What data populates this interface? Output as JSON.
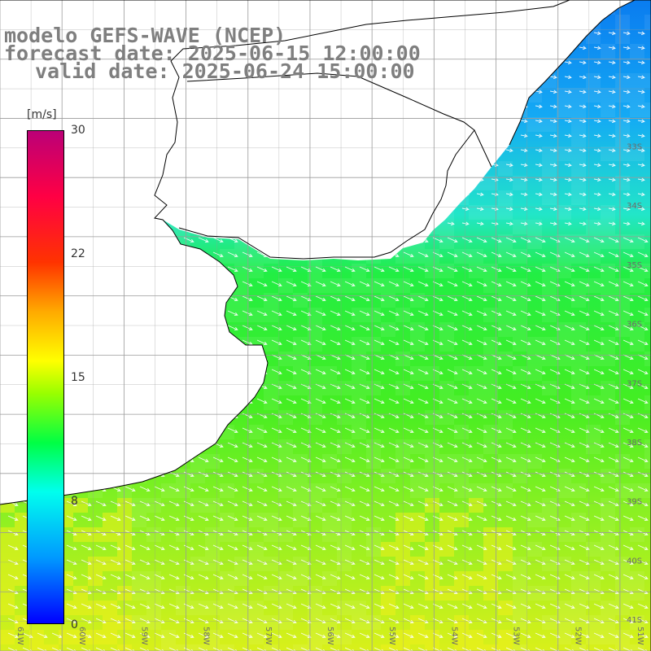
{
  "header": {
    "line1": "modelo GEFS-WAVE (NCEP)",
    "line2": "forecast date: 2025-06-15 12:00:00",
    "line3": "valid date: 2025-06-24 15:00:00"
  },
  "colorbar": {
    "unit": "[m/s]",
    "tick_labels": [
      "30",
      "22",
      "15",
      "8",
      "0"
    ],
    "range": [
      0,
      30
    ],
    "gradient_stops": [
      {
        "value": 0,
        "color": "#0000ff"
      },
      {
        "value": 4,
        "color": "#0099ff"
      },
      {
        "value": 8,
        "color": "#00ffee"
      },
      {
        "value": 11,
        "color": "#00ff44"
      },
      {
        "value": 14,
        "color": "#99ff00"
      },
      {
        "value": 16,
        "color": "#ffff00"
      },
      {
        "value": 19,
        "color": "#ffaa00"
      },
      {
        "value": 22,
        "color": "#ff3300"
      },
      {
        "value": 26,
        "color": "#ff0044"
      },
      {
        "value": 30,
        "color": "#bb0077"
      }
    ]
  },
  "map": {
    "lon_labels": [
      "61W",
      "60W",
      "59W",
      "58W",
      "57W",
      "56W",
      "55W",
      "54W",
      "53W",
      "52W",
      "51W"
    ],
    "lat_labels": [
      "33S",
      "34S",
      "35S",
      "36S",
      "37S",
      "38S",
      "39S",
      "40S",
      "41S"
    ],
    "lon_range": [
      -61,
      -50.5
    ],
    "lat_range": [
      -41.3,
      -30.3
    ],
    "ocean_color": "#44ee33",
    "land_color": "#ffffff",
    "grid_color": "#9a9a9a",
    "coast_color": "#000000",
    "arrow_color": "#ffffff"
  }
}
